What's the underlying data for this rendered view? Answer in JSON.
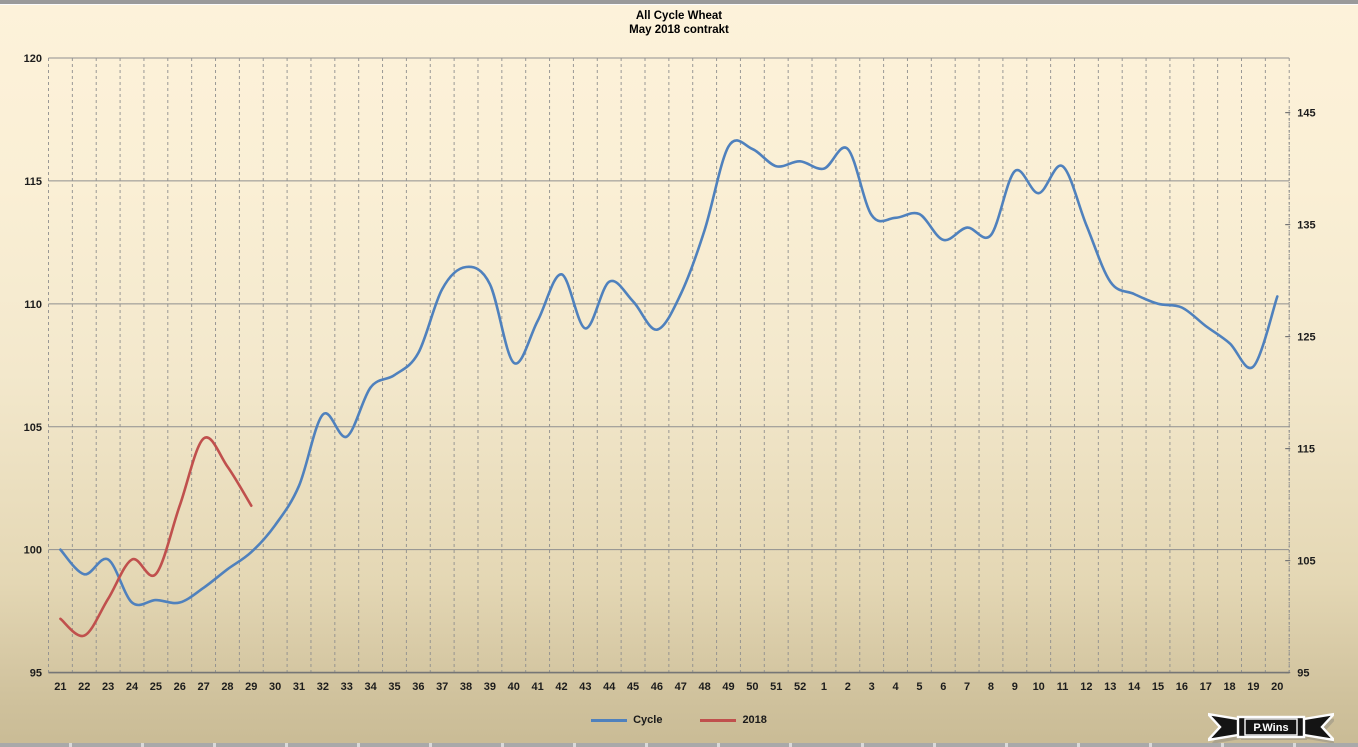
{
  "window": {
    "top_bar": "window-edge",
    "bottom_strip": "next-chart-edge"
  },
  "chart": {
    "title_line1": "All Cycle Wheat",
    "title_line2": "May 2018 contrakt"
  },
  "chart_data": {
    "type": "line",
    "title": "All Cycle Wheat",
    "subtitle": "May 2018 contrakt",
    "x_axis_note": "calendar week numbers, week 21 through week 20 of following year",
    "categories": [
      "21",
      "22",
      "23",
      "24",
      "25",
      "26",
      "27",
      "28",
      "29",
      "30",
      "31",
      "32",
      "33",
      "34",
      "35",
      "36",
      "37",
      "38",
      "39",
      "40",
      "41",
      "42",
      "43",
      "44",
      "45",
      "46",
      "47",
      "48",
      "49",
      "50",
      "51",
      "52",
      "1",
      "2",
      "3",
      "4",
      "5",
      "6",
      "7",
      "8",
      "9",
      "10",
      "11",
      "12",
      "13",
      "14",
      "15",
      "16",
      "17",
      "18",
      "19",
      "20"
    ],
    "left_axis": {
      "min": 95,
      "max": 120,
      "ticks": [
        95,
        100,
        105,
        110,
        115,
        120
      ]
    },
    "right_axis": {
      "min": 95,
      "max": 150,
      "ticks": [
        95,
        105,
        115,
        125,
        135,
        145
      ]
    },
    "grid": {
      "vertical": "dashed, one per week",
      "horizontal": "solid, at left-axis ticks"
    },
    "legend_position": "bottom-center",
    "line_style": "smoothed",
    "series": [
      {
        "name": "Cycle",
        "color": "#4f81bd",
        "axis": "left",
        "values": [
          100.0,
          99.0,
          99.6,
          97.85,
          97.95,
          97.85,
          98.45,
          99.2,
          99.9,
          101.0,
          102.6,
          105.5,
          104.6,
          106.6,
          107.1,
          108.0,
          110.6,
          111.5,
          110.8,
          107.6,
          109.3,
          111.2,
          109.0,
          110.9,
          110.1,
          108.95,
          110.4,
          113.0,
          116.4,
          116.3,
          115.6,
          115.8,
          115.5,
          116.3,
          113.6,
          113.5,
          113.65,
          112.6,
          113.1,
          112.8,
          115.4,
          114.5,
          115.6,
          113.2,
          110.9,
          110.4,
          110.0,
          109.85,
          109.1,
          108.4,
          107.45,
          110.3
        ]
      },
      {
        "name": "2018",
        "color": "#c0504d",
        "axis": "right",
        "values": [
          99.8,
          98.3,
          101.6,
          105.1,
          103.8,
          109.9,
          115.9,
          113.4,
          109.9,
          null,
          null,
          null,
          null,
          null,
          null,
          null,
          null,
          null,
          null,
          null,
          null,
          null,
          null,
          null,
          null,
          null,
          null,
          null,
          null,
          null,
          null,
          null,
          null,
          null,
          null,
          null,
          null,
          null,
          null,
          null,
          null,
          null,
          null,
          null,
          null,
          null,
          null,
          null,
          null,
          null,
          null,
          null
        ]
      }
    ]
  },
  "legend": {
    "items": [
      {
        "label": "Cycle",
        "color": "#4f81bd"
      },
      {
        "label": "2018",
        "color": "#c0504d"
      }
    ]
  },
  "logo": {
    "text": "P.Wins"
  },
  "colors": {
    "background_top": "#fdf2da",
    "background_bottom": "#c9bb95",
    "gridline": "#8f8f8f",
    "axis_line": "#767676",
    "label_text": "#1c1c1c",
    "series_cycle": "#4f81bd",
    "series_2018": "#c0504d"
  }
}
